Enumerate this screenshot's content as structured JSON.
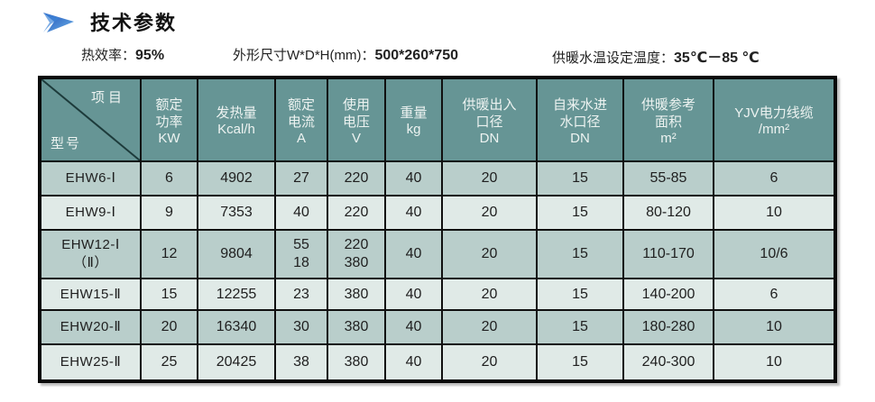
{
  "header": {
    "title": "技术参数",
    "arrow_icon": "double-arrow-right",
    "arrow_colors": {
      "dark": "#1d50b8",
      "light": "#6cb2e8"
    },
    "specs": [
      {
        "label": "热效率：",
        "value": "95%"
      },
      {
        "label": "外形尺寸W*D*H(mm)：",
        "value": "500*260*750"
      },
      {
        "label": "供暖水温设定温度：",
        "value": "35℃－85 ℃"
      }
    ]
  },
  "table": {
    "colors": {
      "header_bg": "#669595",
      "header_text": "#edf3f1",
      "row_shade_dark": "#b9cecb",
      "row_shade_light": "#e0eae7",
      "border": "#101010"
    },
    "corner": {
      "top_right": "项目",
      "bottom_left": "型号"
    },
    "columns": [
      {
        "lines": [
          "额定",
          "功率"
        ],
        "unit": "KW"
      },
      {
        "lines": [
          "发热量"
        ],
        "unit": "Kcal/h"
      },
      {
        "lines": [
          "额定",
          "电流"
        ],
        "unit": "A"
      },
      {
        "lines": [
          "使用",
          "电压"
        ],
        "unit": "V"
      },
      {
        "lines": [
          "重量"
        ],
        "unit": "kg"
      },
      {
        "lines": [
          "供暖出入",
          "口径"
        ],
        "unit": "DN"
      },
      {
        "lines": [
          "自来水进",
          "水口径"
        ],
        "unit": "DN"
      },
      {
        "lines": [
          "供暖参考",
          "面积"
        ],
        "unit": "m²"
      },
      {
        "lines": [
          "YJV电力线缆"
        ],
        "unit": "/mm²"
      }
    ],
    "rows": [
      {
        "model": [
          "EHW6-Ⅰ"
        ],
        "values": [
          [
            "6"
          ],
          [
            "4902"
          ],
          [
            "27"
          ],
          [
            "220"
          ],
          [
            "40"
          ],
          [
            "20"
          ],
          [
            "15"
          ],
          [
            "55-85"
          ],
          [
            "6"
          ]
        ]
      },
      {
        "model": [
          "EHW9-Ⅰ"
        ],
        "values": [
          [
            "9"
          ],
          [
            "7353"
          ],
          [
            "40"
          ],
          [
            "220"
          ],
          [
            "40"
          ],
          [
            "20"
          ],
          [
            "15"
          ],
          [
            "80-120"
          ],
          [
            "10"
          ]
        ]
      },
      {
        "model": [
          "EHW12-Ⅰ",
          "（Ⅱ）"
        ],
        "values": [
          [
            "12"
          ],
          [
            "9804"
          ],
          [
            "55",
            "18"
          ],
          [
            "220",
            "380"
          ],
          [
            "40"
          ],
          [
            "20"
          ],
          [
            "15"
          ],
          [
            "110-170"
          ],
          [
            "10/6"
          ]
        ]
      },
      {
        "model": [
          "EHW15-Ⅱ"
        ],
        "values": [
          [
            "15"
          ],
          [
            "12255"
          ],
          [
            "23"
          ],
          [
            "380"
          ],
          [
            "40"
          ],
          [
            "20"
          ],
          [
            "15"
          ],
          [
            "140-200"
          ],
          [
            "6"
          ]
        ]
      },
      {
        "model": [
          "EHW20-Ⅱ"
        ],
        "values": [
          [
            "20"
          ],
          [
            "16340"
          ],
          [
            "30"
          ],
          [
            "380"
          ],
          [
            "40"
          ],
          [
            "20"
          ],
          [
            "15"
          ],
          [
            "180-280"
          ],
          [
            "10"
          ]
        ]
      },
      {
        "model": [
          "EHW25-Ⅱ"
        ],
        "values": [
          [
            "25"
          ],
          [
            "20425"
          ],
          [
            "38"
          ],
          [
            "380"
          ],
          [
            "40"
          ],
          [
            "20"
          ],
          [
            "15"
          ],
          [
            "240-300"
          ],
          [
            "10"
          ]
        ]
      }
    ]
  }
}
